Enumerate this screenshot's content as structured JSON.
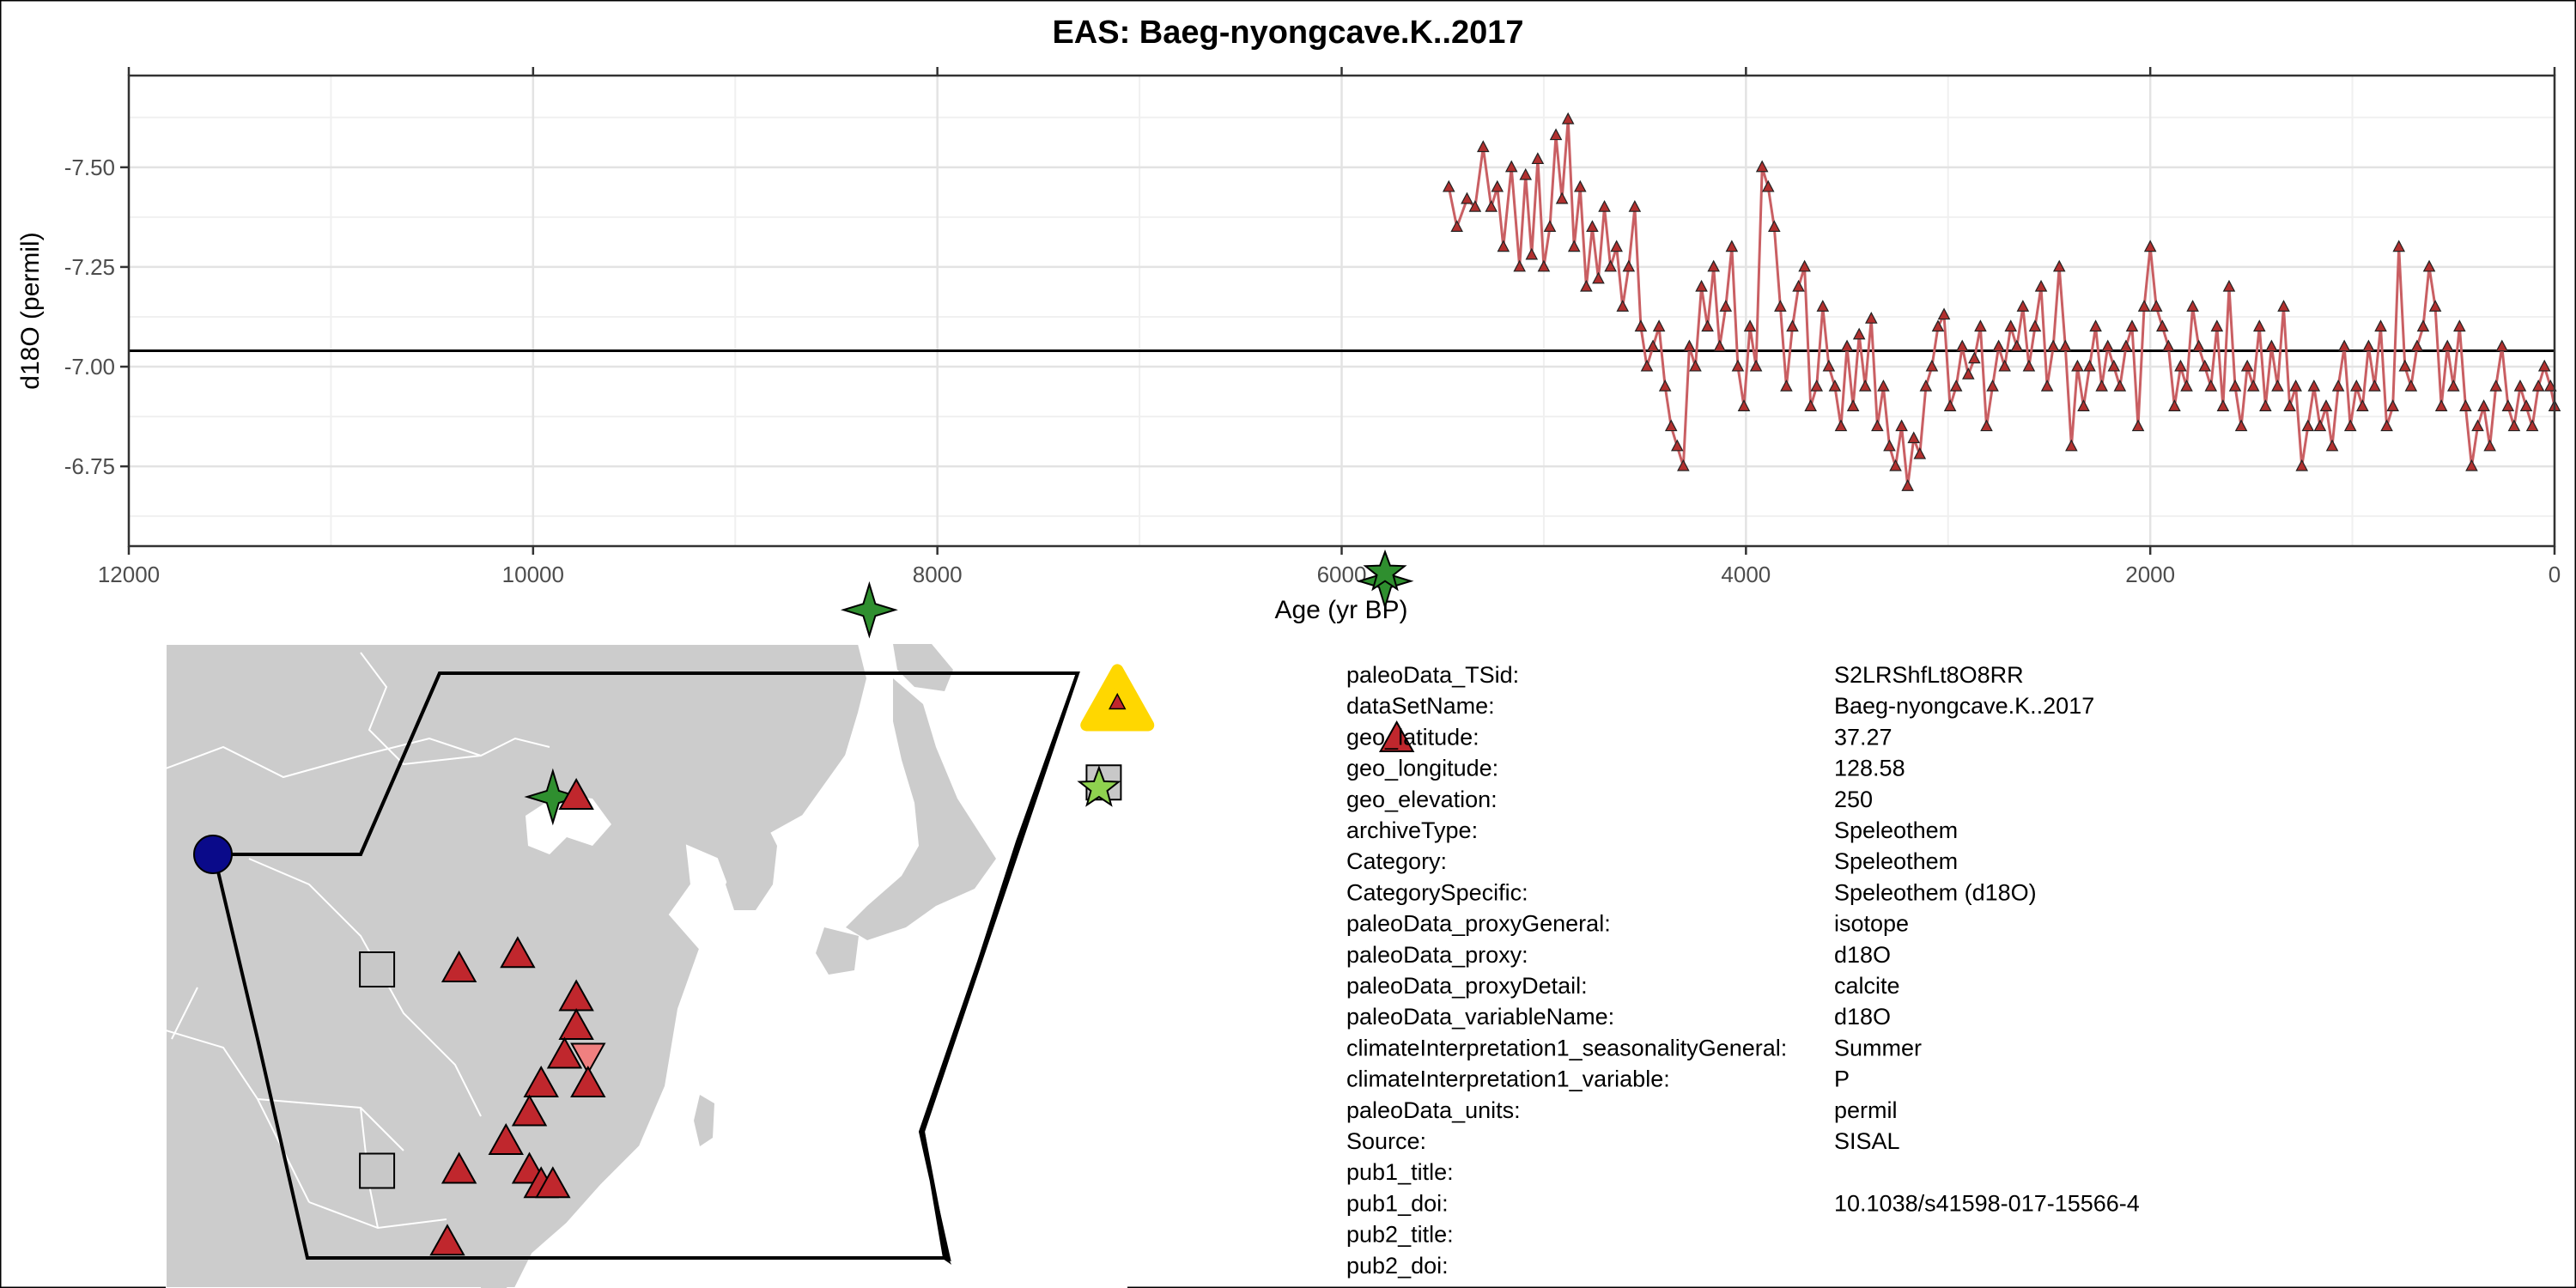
{
  "colors": {
    "series_line": "#c95f63",
    "series_point": "#b1302f",
    "mean_line": "#000000",
    "map_land": "#cccccc",
    "map_border": "#ffffff",
    "site_highlight": "#ffd700",
    "marker_red": "#c0272d",
    "marker_green_dark": "#2f8f2f",
    "marker_green_light": "#8fd24f",
    "marker_blue": "#0a0a8a",
    "marker_gray": "#c8c8c8",
    "marker_pink": "#f08080"
  },
  "chart_data": {
    "type": "line",
    "title": "EAS: Baeg-nyongcave.K..2017",
    "xlabel": "Age (yr BP)",
    "ylabel": "d18O (permil)",
    "x_reversed": true,
    "xlim": [
      12000,
      0
    ],
    "y_reversed": true,
    "ylim": [
      -6.55,
      -7.73
    ],
    "x_ticks": [
      12000,
      10000,
      8000,
      6000,
      4000,
      2000,
      0
    ],
    "x_tick_labels": [
      "12000",
      "10000",
      "8000",
      "6000",
      "4000",
      "2000",
      "0"
    ],
    "y_ticks": [
      -7.5,
      -7.25,
      -7.0,
      -6.75
    ],
    "y_tick_labels": [
      "-7.50",
      "-7.25",
      "-7.00",
      "-6.75"
    ],
    "grid": true,
    "mean_line_y": -7.04,
    "marker": "triangle",
    "series": [
      {
        "x": [
          5470,
          5430,
          5380,
          5340,
          5300,
          5260,
          5230,
          5200,
          5160,
          5120,
          5090,
          5060,
          5030,
          5000,
          4970,
          4940,
          4910,
          4880,
          4850,
          4820,
          4790,
          4760,
          4730,
          4700,
          4670,
          4640,
          4610,
          4580,
          4550,
          4520,
          4490,
          4460,
          4430,
          4400,
          4370,
          4340,
          4310,
          4280,
          4250,
          4220,
          4190,
          4160,
          4130,
          4100,
          4070,
          4040,
          4010,
          3980,
          3950,
          3920,
          3890,
          3860,
          3830,
          3800,
          3770,
          3740,
          3710,
          3680,
          3650,
          3620,
          3590,
          3560,
          3530,
          3500,
          3470,
          3440,
          3410,
          3380,
          3350,
          3320,
          3290,
          3260,
          3230,
          3200,
          3170,
          3140,
          3110,
          3080,
          3050,
          3020,
          2990,
          2960,
          2930,
          2900,
          2870,
          2840,
          2810,
          2780,
          2750,
          2720,
          2690,
          2660,
          2630,
          2600,
          2570,
          2540,
          2510,
          2480,
          2450,
          2420,
          2390,
          2360,
          2330,
          2300,
          2270,
          2240,
          2210,
          2180,
          2150,
          2120,
          2090,
          2060,
          2030,
          2000,
          1970,
          1940,
          1910,
          1880,
          1850,
          1820,
          1790,
          1760,
          1730,
          1700,
          1670,
          1640,
          1610,
          1580,
          1550,
          1520,
          1490,
          1460,
          1430,
          1400,
          1370,
          1340,
          1310,
          1280,
          1250,
          1220,
          1190,
          1160,
          1130,
          1100,
          1070,
          1040,
          1010,
          980,
          950,
          920,
          890,
          860,
          830,
          800,
          770,
          740,
          710,
          680,
          650,
          620,
          590,
          560,
          530,
          500,
          470,
          440,
          410,
          380,
          350,
          320,
          290,
          260,
          230,
          200,
          170,
          140,
          110,
          80,
          50,
          20,
          0
        ],
        "values": [
          -7.45,
          -7.35,
          -7.42,
          -7.4,
          -7.55,
          -7.4,
          -7.45,
          -7.3,
          -7.5,
          -7.25,
          -7.48,
          -7.28,
          -7.52,
          -7.25,
          -7.35,
          -7.58,
          -7.42,
          -7.62,
          -7.3,
          -7.45,
          -7.2,
          -7.35,
          -7.22,
          -7.4,
          -7.25,
          -7.3,
          -7.15,
          -7.25,
          -7.4,
          -7.1,
          -7.0,
          -7.05,
          -7.1,
          -6.95,
          -6.85,
          -6.8,
          -6.75,
          -7.05,
          -7.0,
          -7.2,
          -7.1,
          -7.25,
          -7.05,
          -7.15,
          -7.3,
          -7.0,
          -6.9,
          -7.1,
          -7.0,
          -7.5,
          -7.45,
          -7.35,
          -7.15,
          -6.95,
          -7.1,
          -7.2,
          -7.25,
          -6.9,
          -6.95,
          -7.15,
          -7.0,
          -6.95,
          -6.85,
          -7.05,
          -6.9,
          -7.08,
          -6.95,
          -7.12,
          -6.85,
          -6.95,
          -6.8,
          -6.75,
          -6.85,
          -6.7,
          -6.82,
          -6.78,
          -6.95,
          -7.0,
          -7.1,
          -7.13,
          -6.9,
          -6.95,
          -7.05,
          -6.98,
          -7.02,
          -7.1,
          -6.85,
          -6.95,
          -7.05,
          -7.0,
          -7.1,
          -7.05,
          -7.15,
          -7.0,
          -7.1,
          -7.2,
          -6.95,
          -7.05,
          -7.25,
          -7.05,
          -6.8,
          -7.0,
          -6.9,
          -7.0,
          -7.1,
          -6.95,
          -7.05,
          -7.0,
          -6.95,
          -7.05,
          -7.1,
          -6.85,
          -7.15,
          -7.3,
          -7.15,
          -7.1,
          -7.05,
          -6.9,
          -7.0,
          -6.95,
          -7.15,
          -7.05,
          -7.0,
          -6.95,
          -7.1,
          -6.9,
          -7.2,
          -6.95,
          -6.85,
          -7.0,
          -6.95,
          -7.1,
          -6.9,
          -7.05,
          -6.95,
          -7.15,
          -6.9,
          -6.95,
          -6.75,
          -6.85,
          -6.95,
          -6.85,
          -6.9,
          -6.8,
          -6.95,
          -7.05,
          -6.85,
          -6.95,
          -6.9,
          -7.05,
          -6.95,
          -7.1,
          -6.85,
          -6.9,
          -7.3,
          -7.0,
          -6.95,
          -7.05,
          -7.1,
          -7.25,
          -7.15,
          -6.9,
          -7.05,
          -6.95,
          -7.1,
          -6.9,
          -6.75,
          -6.85,
          -6.9,
          -6.8,
          -6.95,
          -7.05,
          -6.9,
          -6.85,
          -6.95,
          -6.9,
          -6.85,
          -6.95,
          -7.0,
          -6.95,
          -6.9
        ]
      }
    ]
  },
  "map": {
    "markers": [
      {
        "shape": "circle",
        "color": "marker_blue",
        "lon": 90.0,
        "lat": 32.0
      },
      {
        "shape": "star4",
        "color": "marker_green_dark",
        "lon": 104.5,
        "lat": 34.0
      },
      {
        "shape": "triangle",
        "color": "marker_red",
        "lon": 105.5,
        "lat": 34.0
      },
      {
        "shape": "star4",
        "color": "marker_green_dark",
        "lon": 118.0,
        "lat": 40.5
      },
      {
        "shape": "star4",
        "color": "marker_green_dark",
        "lon": 140.0,
        "lat": 41.5
      },
      {
        "shape": "triangle",
        "color": "marker_red",
        "lon": 140.5,
        "lat": 36.0
      },
      {
        "shape": "square",
        "color": "marker_gray",
        "lon": 97.0,
        "lat": 28.0
      },
      {
        "shape": "square",
        "color": "marker_gray",
        "lon": 97.0,
        "lat": 21.0
      },
      {
        "shape": "triangle",
        "color": "marker_red",
        "lon": 100.5,
        "lat": 28.0
      },
      {
        "shape": "triangle",
        "color": "marker_red",
        "lon": 103.0,
        "lat": 28.5
      },
      {
        "shape": "triangle",
        "color": "marker_red",
        "lon": 105.5,
        "lat": 27.0
      },
      {
        "shape": "triangle",
        "color": "marker_red",
        "lon": 105.5,
        "lat": 26.0
      },
      {
        "shape": "triangle",
        "color": "marker_red",
        "lon": 105.0,
        "lat": 25.0
      },
      {
        "shape": "triangle_down",
        "color": "marker_pink",
        "lon": 106.0,
        "lat": 25.0
      },
      {
        "shape": "triangle",
        "color": "marker_red",
        "lon": 104.0,
        "lat": 24.0
      },
      {
        "shape": "triangle",
        "color": "marker_red",
        "lon": 106.0,
        "lat": 24.0
      },
      {
        "shape": "triangle",
        "color": "marker_red",
        "lon": 103.5,
        "lat": 23.0
      },
      {
        "shape": "triangle",
        "color": "marker_red",
        "lon": 102.5,
        "lat": 22.0
      },
      {
        "shape": "triangle",
        "color": "marker_red",
        "lon": 100.5,
        "lat": 21.0
      },
      {
        "shape": "triangle",
        "color": "marker_red",
        "lon": 103.5,
        "lat": 21.0
      },
      {
        "shape": "triangle",
        "color": "marker_red",
        "lon": 104.0,
        "lat": 20.5
      },
      {
        "shape": "triangle",
        "color": "marker_red",
        "lon": 104.5,
        "lat": 20.5
      },
      {
        "shape": "triangle",
        "color": "marker_red",
        "lon": 100.0,
        "lat": 18.5
      },
      {
        "shape": "square",
        "color": "marker_gray",
        "lon": 128.0,
        "lat": 34.5
      },
      {
        "shape": "star5",
        "color": "marker_green_light",
        "lon": 127.8,
        "lat": 34.3
      },
      {
        "shape": "star5",
        "color": "marker_green_dark",
        "lon": 140.0,
        "lat": 41.8
      },
      {
        "shape": "highlight_triangle",
        "color": "site_highlight",
        "lon": 128.58,
        "lat": 37.27
      }
    ]
  },
  "metadata": [
    {
      "key": "paleoData_TSid:",
      "value": "S2LRShfLt8O8RR"
    },
    {
      "key": "dataSetName:",
      "value": "Baeg-nyongcave.K..2017"
    },
    {
      "key": "geo_latitude:",
      "value": "37.27"
    },
    {
      "key": "geo_longitude:",
      "value": "128.58"
    },
    {
      "key": "geo_elevation:",
      "value": "250"
    },
    {
      "key": "archiveType:",
      "value": "Speleothem"
    },
    {
      "key": "Category:",
      "value": "Speleothem"
    },
    {
      "key": "CategorySpecific:",
      "value": "Speleothem (d18O)"
    },
    {
      "key": "paleoData_proxyGeneral:",
      "value": "isotope"
    },
    {
      "key": "paleoData_proxy:",
      "value": "d18O"
    },
    {
      "key": "paleoData_proxyDetail:",
      "value": "calcite"
    },
    {
      "key": "paleoData_variableName:",
      "value": "d18O"
    },
    {
      "key": "climateInterpretation1_seasonalityGeneral:",
      "value": "Summer"
    },
    {
      "key": "climateInterpretation1_variable:",
      "value": "P"
    },
    {
      "key": "paleoData_units:",
      "value": "permil"
    },
    {
      "key": "Source:",
      "value": "SISAL"
    },
    {
      "key": "pub1_title:",
      "value": ""
    },
    {
      "key": "pub1_doi:",
      "value": "10.1038/s41598-017-15566-4"
    },
    {
      "key": "pub2_title:",
      "value": ""
    },
    {
      "key": "pub2_doi:",
      "value": ""
    }
  ]
}
